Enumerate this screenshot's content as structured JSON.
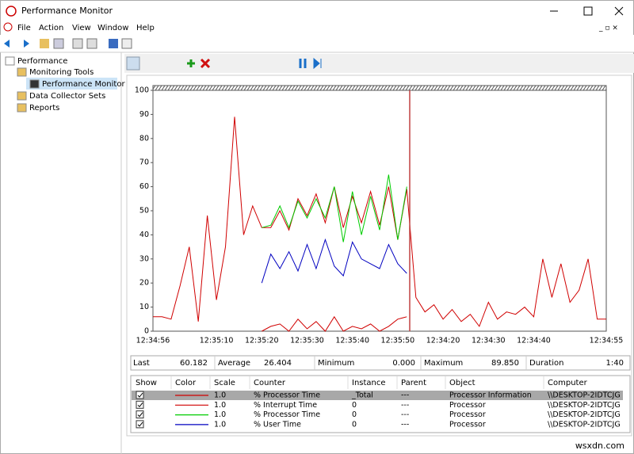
{
  "window": {
    "title": "Performance Monitor"
  },
  "menu": [
    "File",
    "Action",
    "View",
    "Window",
    "Help"
  ],
  "tree": [
    "Performance",
    "Monitoring Tools",
    "Performance Monitor",
    "Data Collector Sets",
    "Reports"
  ],
  "chart_data": {
    "type": "line",
    "categories": [
      "12:34:56",
      null,
      null,
      null,
      null,
      null,
      null,
      "12:35:10",
      null,
      null,
      null,
      null,
      "12:35:20",
      null,
      null,
      null,
      null,
      "12:35:30",
      null,
      null,
      null,
      null,
      "12:35:40",
      null,
      null,
      null,
      null,
      "12:35:50",
      null,
      null,
      null,
      null,
      "12:34:20",
      null,
      null,
      null,
      null,
      "12:34:30",
      null,
      null,
      null,
      null,
      "12:34:40",
      null,
      null,
      null,
      null,
      null,
      null,
      null,
      "12:34:55"
    ],
    "ylim": [
      0,
      100
    ],
    "yticks": [
      0,
      10,
      20,
      30,
      40,
      50,
      60,
      70,
      80,
      90,
      100
    ],
    "grid": false,
    "series": [
      {
        "name": "% Processor Time",
        "color": "#d00000",
        "values": [
          6,
          6,
          5,
          19,
          35,
          4,
          48,
          13,
          35,
          89,
          40,
          52,
          43,
          43,
          50,
          42,
          55,
          48,
          57,
          45,
          60,
          43,
          56,
          45,
          58,
          44,
          60,
          38,
          59,
          14,
          8,
          11,
          5,
          9,
          4,
          7,
          2,
          12,
          5,
          8,
          7,
          10,
          6,
          30,
          14,
          28,
          12,
          17,
          30,
          5,
          5
        ]
      },
      {
        "name": "% Interrupt Time",
        "color": "#d00000",
        "values": [
          null,
          null,
          null,
          null,
          null,
          null,
          null,
          null,
          null,
          null,
          null,
          null,
          0,
          2,
          3,
          0,
          5,
          1,
          4,
          0,
          6,
          0,
          2,
          1,
          3,
          0,
          2,
          5,
          6,
          null,
          null,
          null,
          null,
          null,
          null,
          null,
          null,
          null,
          null,
          null,
          null,
          null,
          null,
          null,
          null,
          null,
          null,
          null,
          null,
          null,
          null
        ]
      },
      {
        "name": "% Processor Time",
        "color": "#00cc00",
        "values": [
          null,
          null,
          null,
          null,
          null,
          null,
          null,
          null,
          null,
          null,
          null,
          null,
          43,
          44,
          52,
          43,
          54,
          47,
          55,
          47,
          60,
          37,
          58,
          40,
          56,
          42,
          65,
          38,
          60,
          null,
          null,
          null,
          null,
          null,
          null,
          null,
          null,
          null,
          null,
          null,
          null,
          null,
          null,
          null,
          null,
          null,
          null,
          null,
          null,
          null,
          null
        ]
      },
      {
        "name": "% User Time",
        "color": "#0000c0",
        "values": [
          null,
          null,
          null,
          null,
          null,
          null,
          null,
          null,
          null,
          null,
          null,
          null,
          20,
          32,
          26,
          33,
          25,
          36,
          26,
          38,
          27,
          23,
          37,
          30,
          28,
          26,
          36,
          28,
          24,
          null,
          null,
          null,
          null,
          null,
          null,
          null,
          null,
          null,
          null,
          null,
          null,
          null,
          null,
          null,
          null,
          null,
          null,
          null,
          null,
          null,
          null
        ]
      }
    ]
  },
  "stats": [
    {
      "label": "Last",
      "value": "60.182"
    },
    {
      "label": "Average",
      "value": "26.404"
    },
    {
      "label": "Minimum",
      "value": "0.000"
    },
    {
      "label": "Maximum",
      "value": "89.850"
    },
    {
      "label": "Duration",
      "value": "1:40"
    }
  ],
  "counters": {
    "columns": [
      "Show",
      "Color",
      "Scale",
      "Counter",
      "Instance",
      "Parent",
      "Object",
      "Computer"
    ],
    "rows": [
      {
        "scale": "1.0",
        "instance": "_Total",
        "parent": "---",
        "object": "Processor Information",
        "computer": "\\\\DESKTOP-2IDTCJG"
      },
      {
        "scale": "1.0",
        "instance": "0",
        "parent": "---",
        "object": "Processor",
        "computer": "\\\\DESKTOP-2IDTCJG"
      },
      {
        "scale": "1.0",
        "instance": "0",
        "parent": "---",
        "object": "Processor",
        "computer": "\\\\DESKTOP-2IDTCJG"
      },
      {
        "scale": "1.0",
        "instance": "0",
        "parent": "---",
        "object": "Processor",
        "computer": "\\\\DESKTOP-2IDTCJG"
      }
    ]
  },
  "watermark": "wsxdn.com"
}
